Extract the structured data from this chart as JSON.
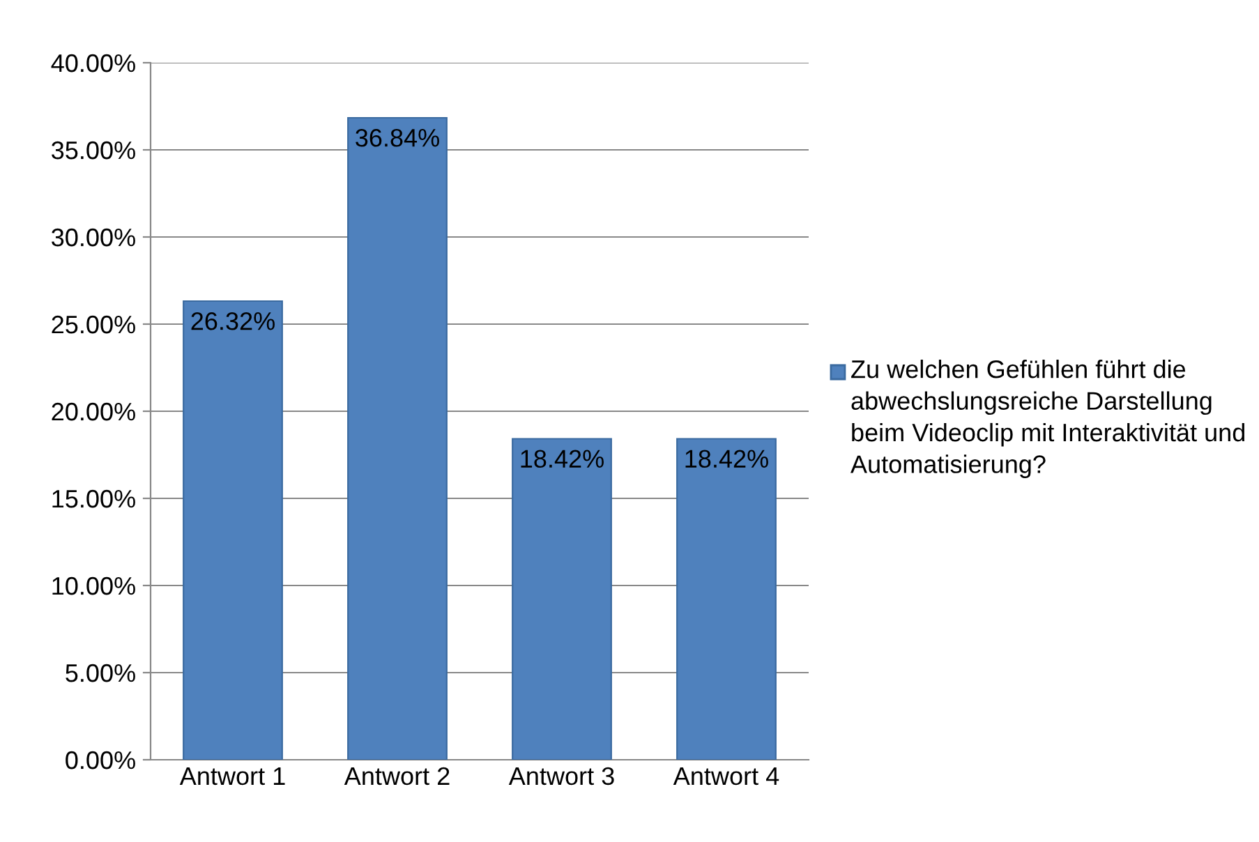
{
  "chart_data": {
    "type": "bar",
    "categories": [
      "Antwort 1",
      "Antwort 2",
      "Antwort 3",
      "Antwort 4"
    ],
    "series": [
      {
        "name": "Zu welchen Gefühlen führt die abwechslungsreiche Darstellung beim Videoclip mit Interaktivität und Automatisierung?",
        "color": "#4f81bd",
        "values": [
          26.32,
          36.84,
          18.42,
          18.42
        ],
        "value_labels": [
          "26.32%",
          "36.84%",
          "18.42%",
          "18.42%"
        ]
      }
    ],
    "ylim": [
      0,
      40
    ],
    "yticks": [
      {
        "value": 0,
        "label": "0.00%"
      },
      {
        "value": 5,
        "label": "5.00%"
      },
      {
        "value": 10,
        "label": "10.00%"
      },
      {
        "value": 15,
        "label": "15.00%"
      },
      {
        "value": 20,
        "label": "20.00%"
      },
      {
        "value": 25,
        "label": "25.00%"
      },
      {
        "value": 30,
        "label": "30.00%"
      },
      {
        "value": 35,
        "label": "35.00%"
      },
      {
        "value": 40,
        "label": "40.00%"
      }
    ],
    "grid": "y",
    "legend": "right"
  }
}
